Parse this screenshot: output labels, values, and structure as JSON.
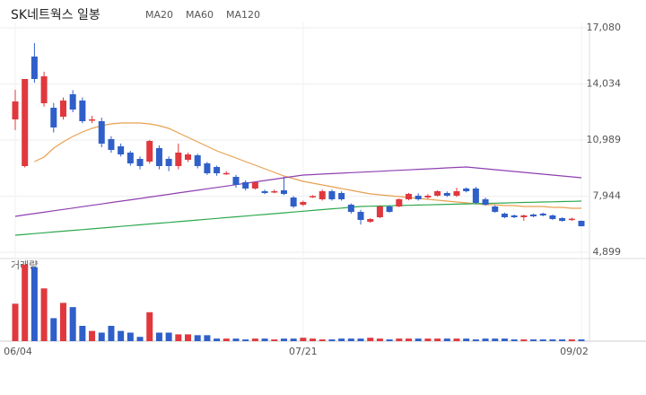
{
  "chart_data": {
    "type": "candlestick",
    "title": "SK네트웍스 일봉",
    "categories": [
      "06/04",
      null,
      null,
      null,
      null,
      null,
      null,
      null,
      null,
      null,
      null,
      null,
      null,
      null,
      null,
      null,
      null,
      null,
      null,
      null,
      null,
      null,
      null,
      null,
      null,
      null,
      null,
      null,
      null,
      null,
      "07/21",
      null,
      null,
      null,
      null,
      null,
      null,
      null,
      null,
      null,
      null,
      null,
      null,
      null,
      null,
      null,
      null,
      null,
      null,
      null,
      null,
      null,
      null,
      null,
      null,
      null,
      null,
      null,
      null,
      "09/02"
    ],
    "open": [
      12111,
      9577,
      15521,
      12988,
      12744,
      12257,
      13475,
      13134,
      12050,
      12013,
      11038,
      10650,
      10308,
      9967,
      9821,
      10552,
      9967,
      9577,
      9918,
      10162,
      9723,
      9528,
      9150,
      8992,
      8700,
      8359,
      8213,
      8150,
      8262,
      7871,
      7480,
      7900,
      7774,
      8213,
      8115,
      7481,
      7091,
      6554,
      6800,
      7385,
      7385,
      7775,
      7969,
      7872,
      7969,
      8115,
      7969,
      8359,
      8359,
      7775,
      7385,
      6995,
      6898,
      6800,
      6947,
      6995,
      6898,
      6751,
      6680,
      6605
    ],
    "high": [
      13718,
      14303,
      16252,
      14700,
      13000,
      13300,
      13700,
      13300,
      12300,
      12200,
      11200,
      10800,
      10400,
      10100,
      11000,
      10700,
      10100,
      10800,
      10300,
      10250,
      9800,
      9600,
      9300,
      9100,
      8800,
      8750,
      8300,
      8300,
      8992,
      7950,
      7700,
      8000,
      8300,
      8300,
      8200,
      7550,
      7200,
      6750,
      7450,
      7450,
      7820,
      8120,
      8100,
      8060,
      8260,
      8200,
      8400,
      8420,
      8450,
      7870,
      7450,
      7050,
      6950,
      6950,
      7000,
      7050,
      6950,
      6800,
      6780,
      6620
    ],
    "low": [
      11526,
      9500,
      14100,
      12800,
      11400,
      12100,
      12500,
      11900,
      11900,
      10600,
      10300,
      10100,
      9600,
      9400,
      9700,
      9400,
      9300,
      9400,
      9800,
      9450,
      9100,
      9050,
      9100,
      8400,
      8250,
      8300,
      8050,
      8100,
      8000,
      7300,
      7400,
      7850,
      7700,
      7700,
      7700,
      7000,
      6400,
      6500,
      6750,
      7050,
      7340,
      7720,
      7700,
      7800,
      7920,
      7900,
      7900,
      8150,
      7500,
      7430,
      7040,
      6750,
      6750,
      6600,
      6800,
      6850,
      6650,
      6560,
      6600,
      6300
    ],
    "close": [
      13085,
      14303,
      14303,
      14449,
      11672,
      13134,
      12646,
      12013,
      12111,
      10795,
      10454,
      10210,
      9723,
      9577,
      10941,
      9577,
      9577,
      10308,
      10210,
      9577,
      9187,
      9187,
      9200,
      8554,
      8359,
      8700,
      8115,
      8213,
      8066,
      7383,
      7627,
      7950,
      8213,
      7774,
      7774,
      7091,
      6654,
      6700,
      7385,
      7093,
      7775,
      8066,
      7775,
      7969,
      8213,
      7969,
      8213,
      8213,
      7580,
      7482,
      7093,
      6800,
      6800,
      6898,
      6849,
      6898,
      6703,
      6605,
      6720,
      6313
    ],
    "up_color": "#e0383e",
    "down_color": "#2f5fc8",
    "ylim": [
      4899,
      17080
    ],
    "yticks": [
      {
        "value": 4899,
        "label": "4,899"
      },
      {
        "value": 7944,
        "label": "7,944"
      },
      {
        "value": 10989,
        "label": "10,989"
      },
      {
        "value": 14034,
        "label": "14,034"
      },
      {
        "value": 17080,
        "label": "17,080"
      }
    ],
    "grid": true,
    "series": [
      {
        "name": "MA20",
        "color": "#e8a050",
        "values": [
          null,
          null,
          9820,
          10065,
          10552,
          10893,
          11185,
          11429,
          11624,
          11770,
          11868,
          11916,
          11916,
          11916,
          11868,
          11770,
          11624,
          11380,
          11136,
          10893,
          10649,
          10405,
          10210,
          10015,
          9820,
          9626,
          9431,
          9236,
          9041,
          8895,
          8749,
          8651,
          8554,
          8456,
          8359,
          8261,
          8164,
          8066,
          8018,
          7969,
          7920,
          7872,
          7823,
          7775,
          7726,
          7677,
          7628,
          7580,
          7531,
          7482,
          7482,
          7434,
          7434,
          7385,
          7385,
          7385,
          7336,
          7336,
          7287,
          7287
        ]
      },
      {
        "name": "MA60",
        "color": "#8e3fb0",
        "values": [
          6849,
          6924,
          6998,
          7073,
          7148,
          7223,
          7297,
          7372,
          7447,
          7521,
          7596,
          7671,
          7745,
          7820,
          7895,
          7970,
          8044,
          8119,
          8194,
          8268,
          8343,
          8418,
          8492,
          8567,
          8642,
          8717,
          8791,
          8866,
          8941,
          9015,
          9090,
          9116,
          9142,
          9167,
          9193,
          9219,
          9245,
          9270,
          9296,
          9322,
          9348,
          9374,
          9399,
          9425,
          9451,
          9477,
          9502,
          9528,
          9479,
          9431,
          9382,
          9333,
          9285,
          9236,
          9187,
          9139,
          9090,
          9041,
          8993,
          8944
        ]
      },
      {
        "name": "MA120",
        "color": "#2ea84f",
        "values": [
          5826,
          5869,
          5913,
          5956,
          5999,
          6043,
          6086,
          6129,
          6172,
          6216,
          6259,
          6302,
          6346,
          6389,
          6432,
          6476,
          6519,
          6562,
          6605,
          6649,
          6692,
          6735,
          6779,
          6822,
          6865,
          6909,
          6952,
          6995,
          7038,
          7082,
          7125,
          7168,
          7212,
          7255,
          7298,
          7342,
          7385,
          7398,
          7410,
          7423,
          7436,
          7448,
          7461,
          7474,
          7487,
          7499,
          7512,
          7525,
          7537,
          7550,
          7563,
          7575,
          7588,
          7601,
          7614,
          7626,
          7639,
          7652,
          7664,
          7677
        ]
      }
    ],
    "volume": {
      "label": "거래량",
      "ylim": [
        0,
        95
      ],
      "values": [
        44,
        90,
        87,
        62,
        27,
        45,
        40,
        18,
        12,
        10,
        18,
        12,
        10,
        5,
        34,
        10,
        10,
        8,
        8,
        7,
        7,
        3,
        3,
        3,
        2,
        3,
        3,
        2,
        3,
        3,
        4,
        3,
        2,
        2,
        3,
        3,
        3,
        4,
        3,
        2,
        3,
        3,
        3,
        3,
        3,
        3,
        3,
        3,
        2,
        3,
        3,
        3,
        2,
        2,
        2,
        2,
        2,
        2,
        2,
        2
      ]
    }
  }
}
